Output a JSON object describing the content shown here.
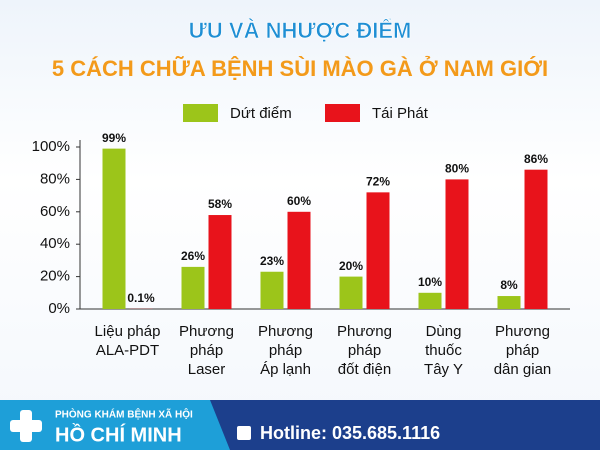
{
  "chart_data": {
    "type": "bar",
    "title": "ƯU VÀ NHƯỢC ĐIỂM",
    "subtitle": "5 CÁCH CHỮA BỆNH SÙI MÀO GÀ Ở NAM GIỚI",
    "categories": [
      "Liệu pháp\nALA-PDT",
      "Phương\npháp\nLaser",
      "Phương\npháp\nÁp lạnh",
      "Phương\npháp\nđốt điện",
      "Dùng\nthuốc\nTây Y",
      "Phương\npháp\ndân gian"
    ],
    "series": [
      {
        "name": "Dứt điểm",
        "color": "#9cc51a",
        "values": [
          99,
          26,
          23,
          20,
          10,
          8
        ],
        "value_labels": [
          "99%",
          "26%",
          "23%",
          "20%",
          "10%",
          "8%"
        ]
      },
      {
        "name": "Tái Phát",
        "color": "#e8131b",
        "values": [
          0.1,
          58,
          60,
          72,
          80,
          86
        ],
        "value_labels": [
          "0.1%",
          "58%",
          "60%",
          "72%",
          "80%",
          "86%"
        ]
      }
    ],
    "ylim": [
      0,
      100
    ],
    "yticks": [
      {
        "value": 0,
        "label": "0%"
      },
      {
        "value": 20,
        "label": "20%"
      },
      {
        "value": 40,
        "label": "40%"
      },
      {
        "value": 60,
        "label": "60%"
      },
      {
        "value": 80,
        "label": "80%"
      },
      {
        "value": 100,
        "label": "100%"
      }
    ],
    "grid": false
  },
  "footer": {
    "clinic_line1": "PHÒNG KHÁM BỆNH XÃ HỘI",
    "clinic_line2": "HỒ CHÍ MINH",
    "hotline": "Hotline: 035.685.1116"
  }
}
